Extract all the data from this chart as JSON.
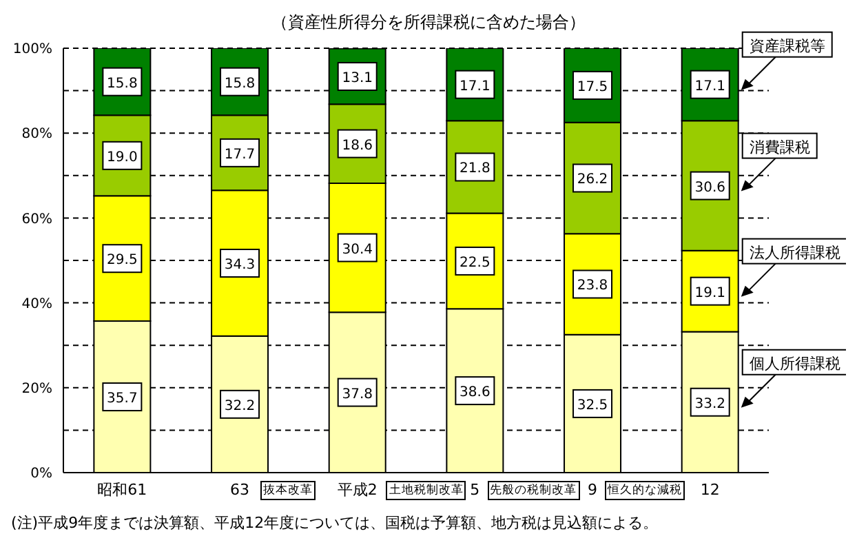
{
  "chart_data": {
    "type": "bar",
    "title": "（資産性所得分を所得課税に含めた場合）",
    "categories": [
      "昭和61",
      "63",
      "平成2",
      "5",
      "9",
      "12"
    ],
    "stacked": true,
    "series": [
      {
        "name": "個人所得課税",
        "color": "#ffffb0",
        "values": [
          35.7,
          32.2,
          37.8,
          38.6,
          32.5,
          33.2
        ]
      },
      {
        "name": "法人所得課税",
        "color": "#ffff00",
        "values": [
          29.5,
          34.3,
          30.4,
          22.5,
          23.8,
          19.1
        ]
      },
      {
        "name": "消費課税",
        "color": "#99cc00",
        "values": [
          19.0,
          17.7,
          18.6,
          21.8,
          26.2,
          30.6
        ],
        "value_labels": [
          "19.0",
          "17.7",
          "18.6",
          "21.8",
          "26.2",
          "30.6"
        ]
      },
      {
        "name": "資産課税等",
        "color": "#008000",
        "values": [
          15.8,
          15.8,
          13.1,
          17.1,
          17.5,
          17.1
        ]
      }
    ],
    "ylim": [
      0,
      100
    ],
    "yticks": [
      {
        "value": 0,
        "label": "0%"
      },
      {
        "value": 10,
        "label": null
      },
      {
        "value": 20,
        "label": "20%"
      },
      {
        "value": 30,
        "label": null
      },
      {
        "value": 40,
        "label": "40%"
      },
      {
        "value": 50,
        "label": null
      },
      {
        "value": 60,
        "label": "60%"
      },
      {
        "value": 70,
        "label": null
      },
      {
        "value": 80,
        "label": "80%"
      },
      {
        "value": 90,
        "label": null
      },
      {
        "value": 100,
        "label": "100%"
      }
    ],
    "grid": "y",
    "legend": "right",
    "data_labels": true,
    "annotations": [
      "抜本改革",
      "土地税制改革",
      "先般の税制改革",
      "恒久的な減税",
      "(注)平成9年度までは決算額、平成12年度については、国税は予算額、地方税は見込額による。"
    ]
  }
}
